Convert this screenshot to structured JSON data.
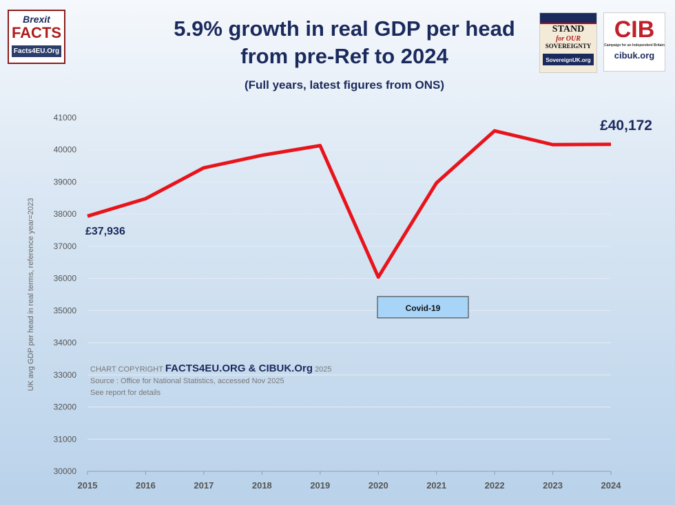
{
  "chart_data": {
    "type": "line",
    "title": "5.9% growth in real GDP per head from pre-Ref to 2024",
    "title_lines": [
      "5.9% growth in real GDP per head",
      "from pre-Ref to 2024"
    ],
    "subtitle": "(Full years, latest figures from ONS)",
    "ylabel": "UK avg GDP per head in real terms, reference year=2023",
    "xlabel": "",
    "x": [
      "2015",
      "2016",
      "2017",
      "2018",
      "2019",
      "2020",
      "2021",
      "2022",
      "2023",
      "2024"
    ],
    "values": [
      37936,
      38480,
      39440,
      39830,
      40130,
      36040,
      38970,
      40590,
      40160,
      40172
    ],
    "ylim": [
      30000,
      41000
    ],
    "yticks": [
      "30000",
      "31000",
      "32000",
      "33000",
      "34000",
      "35000",
      "36000",
      "37000",
      "38000",
      "39000",
      "40000",
      "41000"
    ],
    "grid": true,
    "line_color": "#e8141b",
    "annotations": {
      "start": "£37,936",
      "end": "£40,172",
      "covid": "Covid-19"
    }
  },
  "copyright": {
    "prefix": "CHART COPYRIGHT",
    "brand": "FACTS4EU.ORG & CIBUK.Org",
    "year": "2025"
  },
  "source": "Source : Office for National Statistics, accessed Nov 2025",
  "note": "See report for details",
  "logos": {
    "brexit": {
      "line1": "Brexit",
      "line2": "FACTS",
      "line3": "Facts4EU.Org"
    },
    "stand": {
      "line1": "STAND",
      "line2": "for OUR",
      "line3": "SOVEREIGNTY",
      "line4": "SovereignUK.org"
    },
    "cib": {
      "mark": "CIB",
      "tagline": "Campaign for an Independent Britain",
      "url": "cibuk.org"
    }
  }
}
